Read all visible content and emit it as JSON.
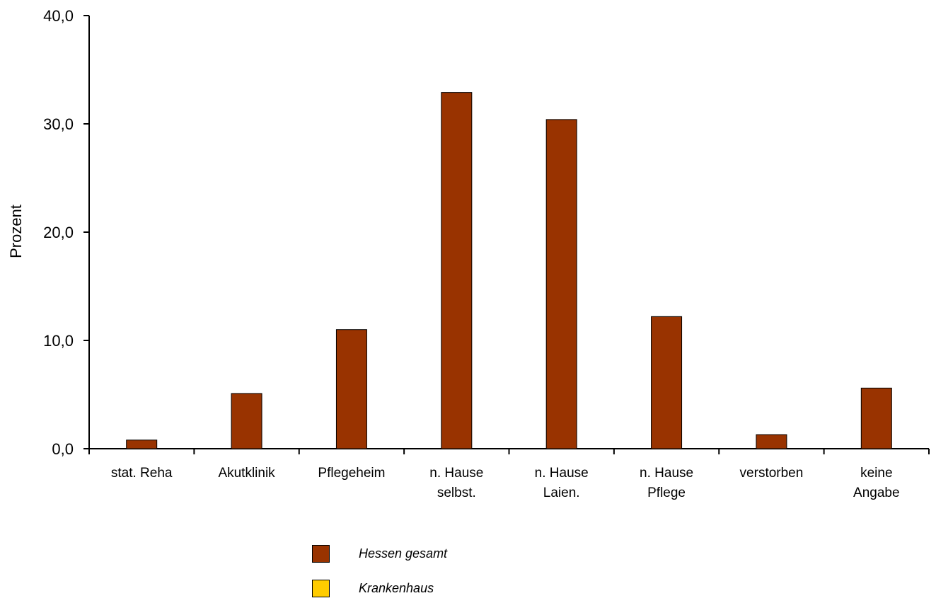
{
  "chart_data": {
    "type": "bar",
    "ylabel": "Prozent",
    "ylim": [
      0,
      40
    ],
    "yticks": [
      "0,0",
      "10,0",
      "20,0",
      "30,0",
      "40,0"
    ],
    "categories": [
      [
        "stat. Reha"
      ],
      [
        "Akutklinik"
      ],
      [
        "Pflegeheim"
      ],
      [
        "n. Hause",
        "selbst."
      ],
      [
        "n. Hause",
        "Laien."
      ],
      [
        "n. Hause",
        "Pflege"
      ],
      [
        "verstorben"
      ],
      [
        "keine",
        "Angabe"
      ]
    ],
    "series": [
      {
        "name": "Hessen gesamt",
        "color": "#993300",
        "values": [
          0.8,
          5.1,
          11.0,
          32.9,
          30.4,
          12.2,
          1.3,
          5.6
        ]
      },
      {
        "name": "Krankenhaus",
        "color": "#FFCC00",
        "values": [
          0,
          0,
          0,
          0,
          0,
          0,
          0,
          0
        ]
      }
    ],
    "grid": false,
    "legend": "bottom-center"
  }
}
